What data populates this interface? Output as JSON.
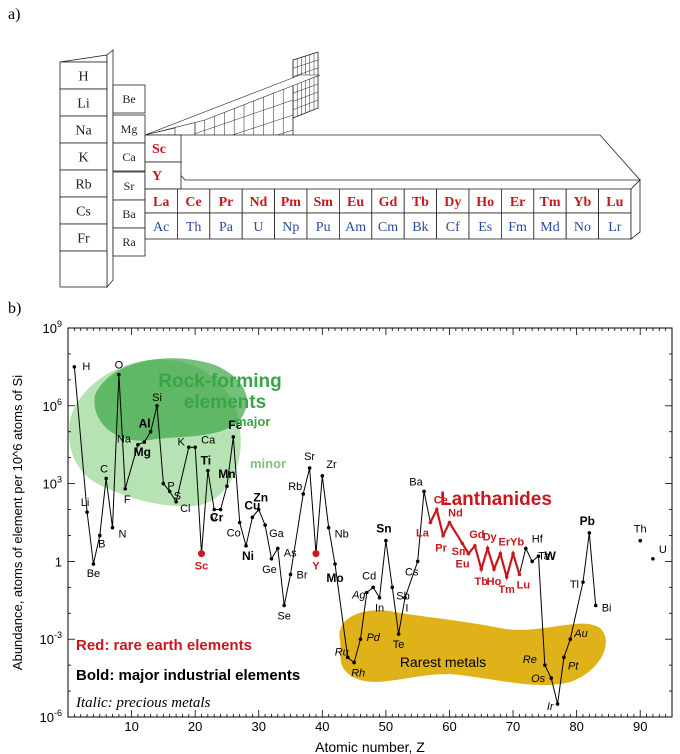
{
  "panel_labels": {
    "a": "a)",
    "b": "b)"
  },
  "periodic_table": {
    "left_block": [
      "H",
      "Li",
      "Na",
      "K",
      "Rb",
      "Cs",
      "Fr"
    ],
    "second_column": [
      "Be",
      "Mg",
      "Ca",
      "Sr",
      "Ba",
      "Ra"
    ],
    "rare_earth_column": [
      "Sc",
      "Y"
    ],
    "lanthanides": [
      "La",
      "Ce",
      "Pr",
      "Nd",
      "Pm",
      "Sm",
      "Eu",
      "Gd",
      "Tb",
      "Dy",
      "Ho",
      "Er",
      "Tm",
      "Yb",
      "Lu"
    ],
    "actinides": [
      "Ac",
      "Th",
      "Pa",
      "U",
      "Np",
      "Pu",
      "Am",
      "Cm",
      "Bk",
      "Cf",
      "Es",
      "Fm",
      "Md",
      "No",
      "Lr"
    ],
    "colors": {
      "rare_earth": "#c8181e",
      "actinide": "#2a4b9b",
      "normal": "#222222"
    }
  },
  "chart_data": {
    "type": "line",
    "xlabel": "Atomic number, Z",
    "ylabel": "Abundance, atoms of element per 10^6 atoms of Si",
    "xlim": [
      0,
      95
    ],
    "ylim_log10": [
      -6,
      9
    ],
    "x_ticks": [
      10,
      20,
      30,
      40,
      50,
      60,
      70,
      80,
      90
    ],
    "y_ticks": [
      "10^-6",
      "10^-3",
      "1",
      "10^3",
      "10^6",
      "10^9"
    ],
    "series": [
      {
        "points": [
          {
            "z": 1,
            "label": "H",
            "log": 7.5
          },
          {
            "z": 3,
            "label": "Li",
            "log": 1.9
          },
          {
            "z": 4,
            "label": "Be",
            "log": -0.1
          },
          {
            "z": 5,
            "label": "B",
            "log": 1.0
          },
          {
            "z": 6,
            "label": "C",
            "log": 3.2
          },
          {
            "z": 7,
            "label": "N",
            "log": 1.3
          },
          {
            "z": 8,
            "label": "O",
            "log": 7.2
          },
          {
            "z": 9,
            "label": "F",
            "log": 2.8
          },
          {
            "z": 11,
            "label": "Na",
            "log": 4.5
          },
          {
            "z": 12,
            "label": "Mg",
            "log": 4.6
          },
          {
            "z": 13,
            "label": "Al",
            "log": 5.0
          },
          {
            "z": 14,
            "label": "Si",
            "log": 6.0
          },
          {
            "z": 15,
            "label": "P",
            "log": 3.0
          },
          {
            "z": 16,
            "label": "S",
            "log": 2.7
          },
          {
            "z": 17,
            "label": "Cl",
            "log": 2.3
          },
          {
            "z": 19,
            "label": "K",
            "log": 4.4
          },
          {
            "z": 20,
            "label": "Ca",
            "log": 4.4
          },
          {
            "z": 21,
            "label": "Sc",
            "log": 0.3
          },
          {
            "z": 22,
            "label": "Ti",
            "log": 3.5
          },
          {
            "z": 23,
            "label": "V",
            "log": 2.0
          },
          {
            "z": 24,
            "label": "Cr",
            "log": 2.0
          },
          {
            "z": 25,
            "label": "Mn",
            "log": 2.9
          },
          {
            "z": 26,
            "label": "Fe",
            "log": 4.8
          },
          {
            "z": 27,
            "label": "Co",
            "log": 1.5
          },
          {
            "z": 28,
            "label": "Ni",
            "log": 0.6
          },
          {
            "z": 29,
            "label": "Cu",
            "log": 1.7
          },
          {
            "z": 30,
            "label": "Zn",
            "log": 2.0
          },
          {
            "z": 31,
            "label": "Ga",
            "log": 1.4
          },
          {
            "z": 32,
            "label": "Ge",
            "log": 0.1
          },
          {
            "z": 33,
            "label": "As",
            "log": 0.5
          },
          {
            "z": 34,
            "label": "Se",
            "log": -1.7
          },
          {
            "z": 35,
            "label": "Br",
            "log": -0.5
          },
          {
            "z": 37,
            "label": "Rb",
            "log": 2.6
          },
          {
            "z": 38,
            "label": "Sr",
            "log": 3.6
          },
          {
            "z": 39,
            "label": "Y",
            "log": 0.3
          },
          {
            "z": 40,
            "label": "Zr",
            "log": 3.3
          },
          {
            "z": 41,
            "label": "Nb",
            "log": 1.3
          },
          {
            "z": 42,
            "label": "Mo",
            "log": -0.1
          },
          {
            "z": 44,
            "label": "Ru",
            "log": -3.7
          },
          {
            "z": 45,
            "label": "Rh",
            "log": -3.9
          },
          {
            "z": 46,
            "label": "Pd",
            "log": -3.0
          },
          {
            "z": 47,
            "label": "Ag",
            "log": -1.2
          },
          {
            "z": 48,
            "label": "Cd",
            "log": -1.0
          },
          {
            "z": 49,
            "label": "In",
            "log": -1.4
          },
          {
            "z": 50,
            "label": "Sn",
            "log": 0.8
          },
          {
            "z": 51,
            "label": "Sb",
            "log": -1.0
          },
          {
            "z": 52,
            "label": "Te",
            "log": -2.8
          },
          {
            "z": 53,
            "label": "I",
            "log": -1.4
          },
          {
            "z": 55,
            "label": "Cs",
            "log": 0.0
          },
          {
            "z": 56,
            "label": "Ba",
            "log": 2.7
          },
          {
            "z": 57,
            "label": "La",
            "log": 1.5
          },
          {
            "z": 58,
            "label": "Ce",
            "log": 2.0
          },
          {
            "z": 59,
            "label": "Pr",
            "log": 1.0
          },
          {
            "z": 60,
            "label": "Nd",
            "log": 1.5
          },
          {
            "z": 62,
            "label": "Sm",
            "log": 0.7
          },
          {
            "z": 63,
            "label": "Eu",
            "log": 0.3
          },
          {
            "z": 64,
            "label": "Gd",
            "log": 0.6
          },
          {
            "z": 65,
            "label": "Tb",
            "log": -0.3
          },
          {
            "z": 66,
            "label": "Dy",
            "log": 0.5
          },
          {
            "z": 67,
            "label": "Ho",
            "log": -0.3
          },
          {
            "z": 68,
            "label": "Er",
            "log": 0.3
          },
          {
            "z": 69,
            "label": "Tm",
            "log": -0.6
          },
          {
            "z": 70,
            "label": "Yb",
            "log": 0.3
          },
          {
            "z": 71,
            "label": "Lu",
            "log": -0.5
          },
          {
            "z": 72,
            "label": "Hf",
            "log": 0.5
          },
          {
            "z": 73,
            "label": "Ta",
            "log": 0.0
          },
          {
            "z": 74,
            "label": "W",
            "log": 0.2
          },
          {
            "z": 75,
            "label": "Re",
            "log": -4.0
          },
          {
            "z": 76,
            "label": "Os",
            "log": -4.5
          },
          {
            "z": 77,
            "label": "Ir",
            "log": -5.5
          },
          {
            "z": 78,
            "label": "Pt",
            "log": -3.7
          },
          {
            "z": 79,
            "label": "Au",
            "log": -3.0
          },
          {
            "z": 81,
            "label": "Tl",
            "log": -0.8
          },
          {
            "z": 82,
            "label": "Pb",
            "log": 1.1
          },
          {
            "z": 83,
            "label": "Bi",
            "log": -1.7
          }
        ]
      },
      {
        "points": [
          {
            "z": 90,
            "label": "Th",
            "log": 0.8
          },
          {
            "z": 92,
            "label": "U",
            "log": 0.1
          }
        ]
      }
    ],
    "label_styles": {
      "red": [
        "Sc",
        "Y",
        "La",
        "Ce",
        "Pr",
        "Nd",
        "Sm",
        "Eu",
        "Gd",
        "Tb",
        "Dy",
        "Ho",
        "Er",
        "Tm",
        "Yb",
        "Lu"
      ],
      "bold": [
        "Al",
        "Mg",
        "Ti",
        "Fe",
        "Mn",
        "Cr",
        "Cu",
        "Zn",
        "Ni",
        "Mo",
        "Sn",
        "W",
        "Pb"
      ],
      "italic": [
        "Ru",
        "Rh",
        "Pd",
        "Ag",
        "Re",
        "Os",
        "Ir",
        "Pt",
        "Au"
      ]
    },
    "annotations": {
      "rock_forming": "Rock-forming elements",
      "rock_forming_line1": "Rock-forming",
      "rock_forming_line2": "elements",
      "major": "major",
      "minor": "minor",
      "lanthanides": "Lanthanides",
      "rarest_metals": "Rarest metals"
    },
    "legend": {
      "red": "Red: rare earth elements",
      "bold": "Bold: major industrial elements",
      "italic": "Italic: precious metals"
    },
    "colors": {
      "red": "#c8181e",
      "green_major": "#3aa546",
      "green_minor": "#9fd89a",
      "gold": "#e0b21a",
      "line": "#000000"
    }
  }
}
